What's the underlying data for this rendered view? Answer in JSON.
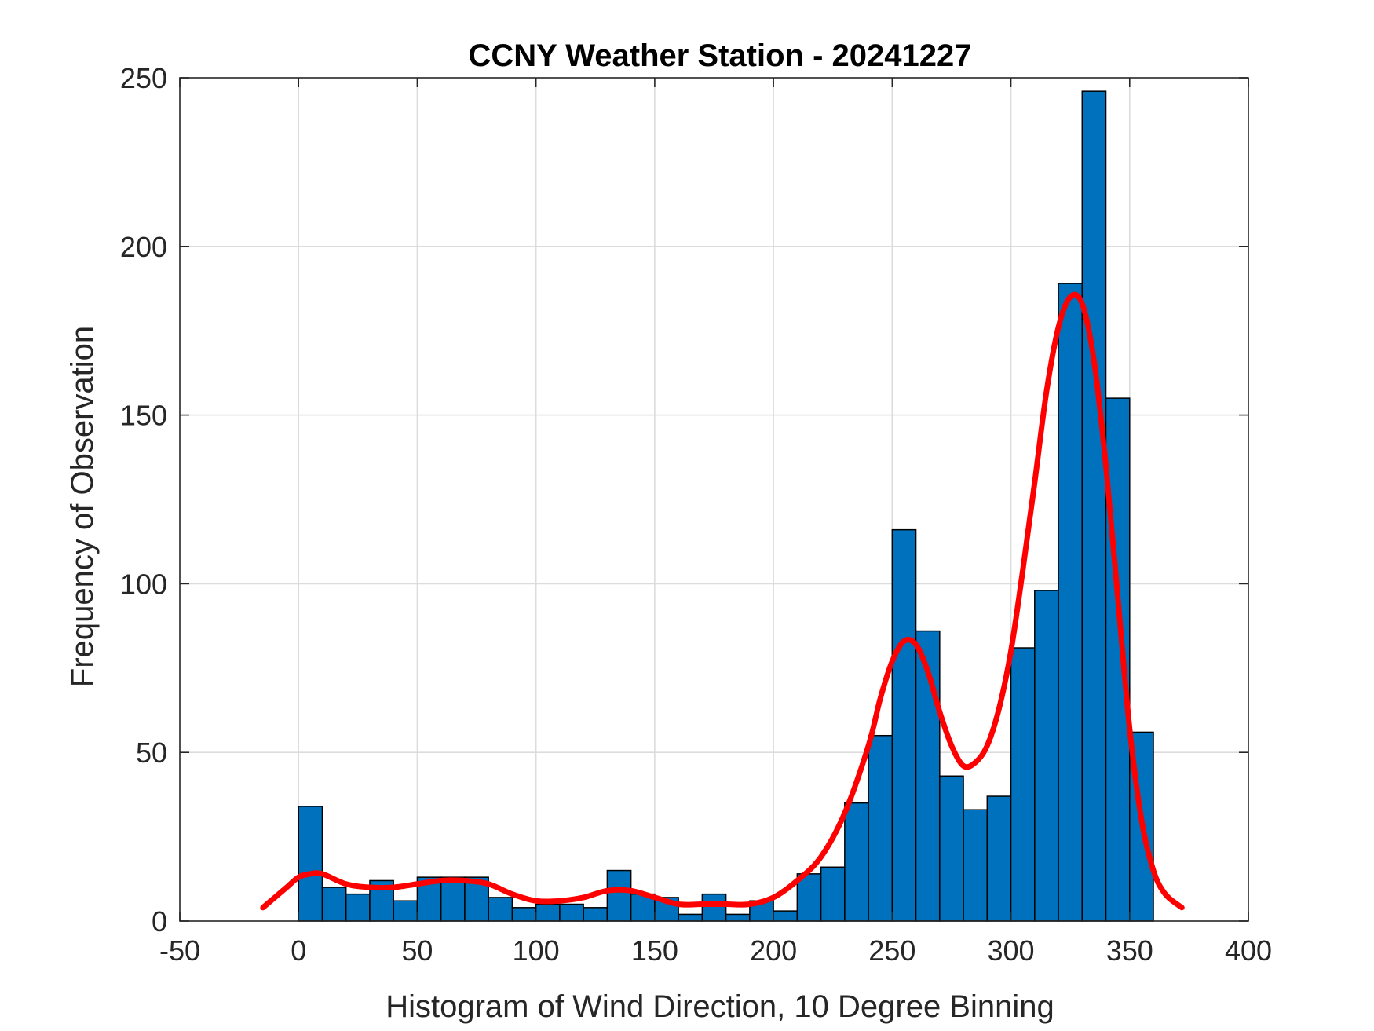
{
  "chart_data": {
    "type": "bar",
    "title": "CCNY Weather Station - 20241227",
    "xlabel": "Histogram of Wind Direction, 10 Degree Binning",
    "ylabel": "Frequency of Observation",
    "xlim": [
      -50,
      400
    ],
    "ylim": [
      0,
      250
    ],
    "xticks": [
      -50,
      0,
      50,
      100,
      150,
      200,
      250,
      300,
      350,
      400
    ],
    "yticks": [
      0,
      50,
      100,
      150,
      200,
      250
    ],
    "grid": true,
    "bin_width": 10,
    "bin_edges": [
      0,
      10,
      20,
      30,
      40,
      50,
      60,
      70,
      80,
      90,
      100,
      110,
      120,
      130,
      140,
      150,
      160,
      170,
      180,
      190,
      200,
      210,
      220,
      230,
      240,
      250,
      260,
      270,
      280,
      290,
      300,
      310,
      320,
      330,
      340,
      350,
      360
    ],
    "values": [
      34,
      10,
      8,
      12,
      6,
      13,
      13,
      13,
      7,
      4,
      5,
      5,
      4,
      15,
      8,
      7,
      2,
      8,
      2,
      6,
      3,
      14,
      16,
      35,
      55,
      116,
      86,
      43,
      33,
      37,
      81,
      98,
      189,
      246,
      155,
      56
    ],
    "bar_color": "#0072BD",
    "fit_line": {
      "color": "#FF0000",
      "x": [
        -15,
        -5,
        0,
        5,
        10,
        20,
        30,
        40,
        50,
        60,
        70,
        80,
        90,
        100,
        110,
        120,
        130,
        140,
        150,
        160,
        170,
        180,
        190,
        200,
        210,
        220,
        230,
        240,
        245,
        250,
        255,
        260,
        265,
        270,
        275,
        280,
        285,
        290,
        295,
        300,
        305,
        310,
        315,
        320,
        325,
        330,
        335,
        340,
        345,
        350,
        355,
        360,
        365,
        372
      ],
      "y": [
        4,
        10,
        13,
        14,
        14,
        11,
        10,
        10,
        11,
        12,
        12,
        11,
        8,
        6,
        6,
        7,
        9,
        9,
        7,
        5,
        5,
        5,
        5,
        7,
        12,
        19,
        32,
        52,
        66,
        77,
        83,
        82,
        74,
        62,
        52,
        46,
        47,
        52,
        63,
        80,
        104,
        130,
        157,
        176,
        185,
        183,
        166,
        135,
        96,
        57,
        30,
        15,
        8,
        4
      ]
    }
  }
}
